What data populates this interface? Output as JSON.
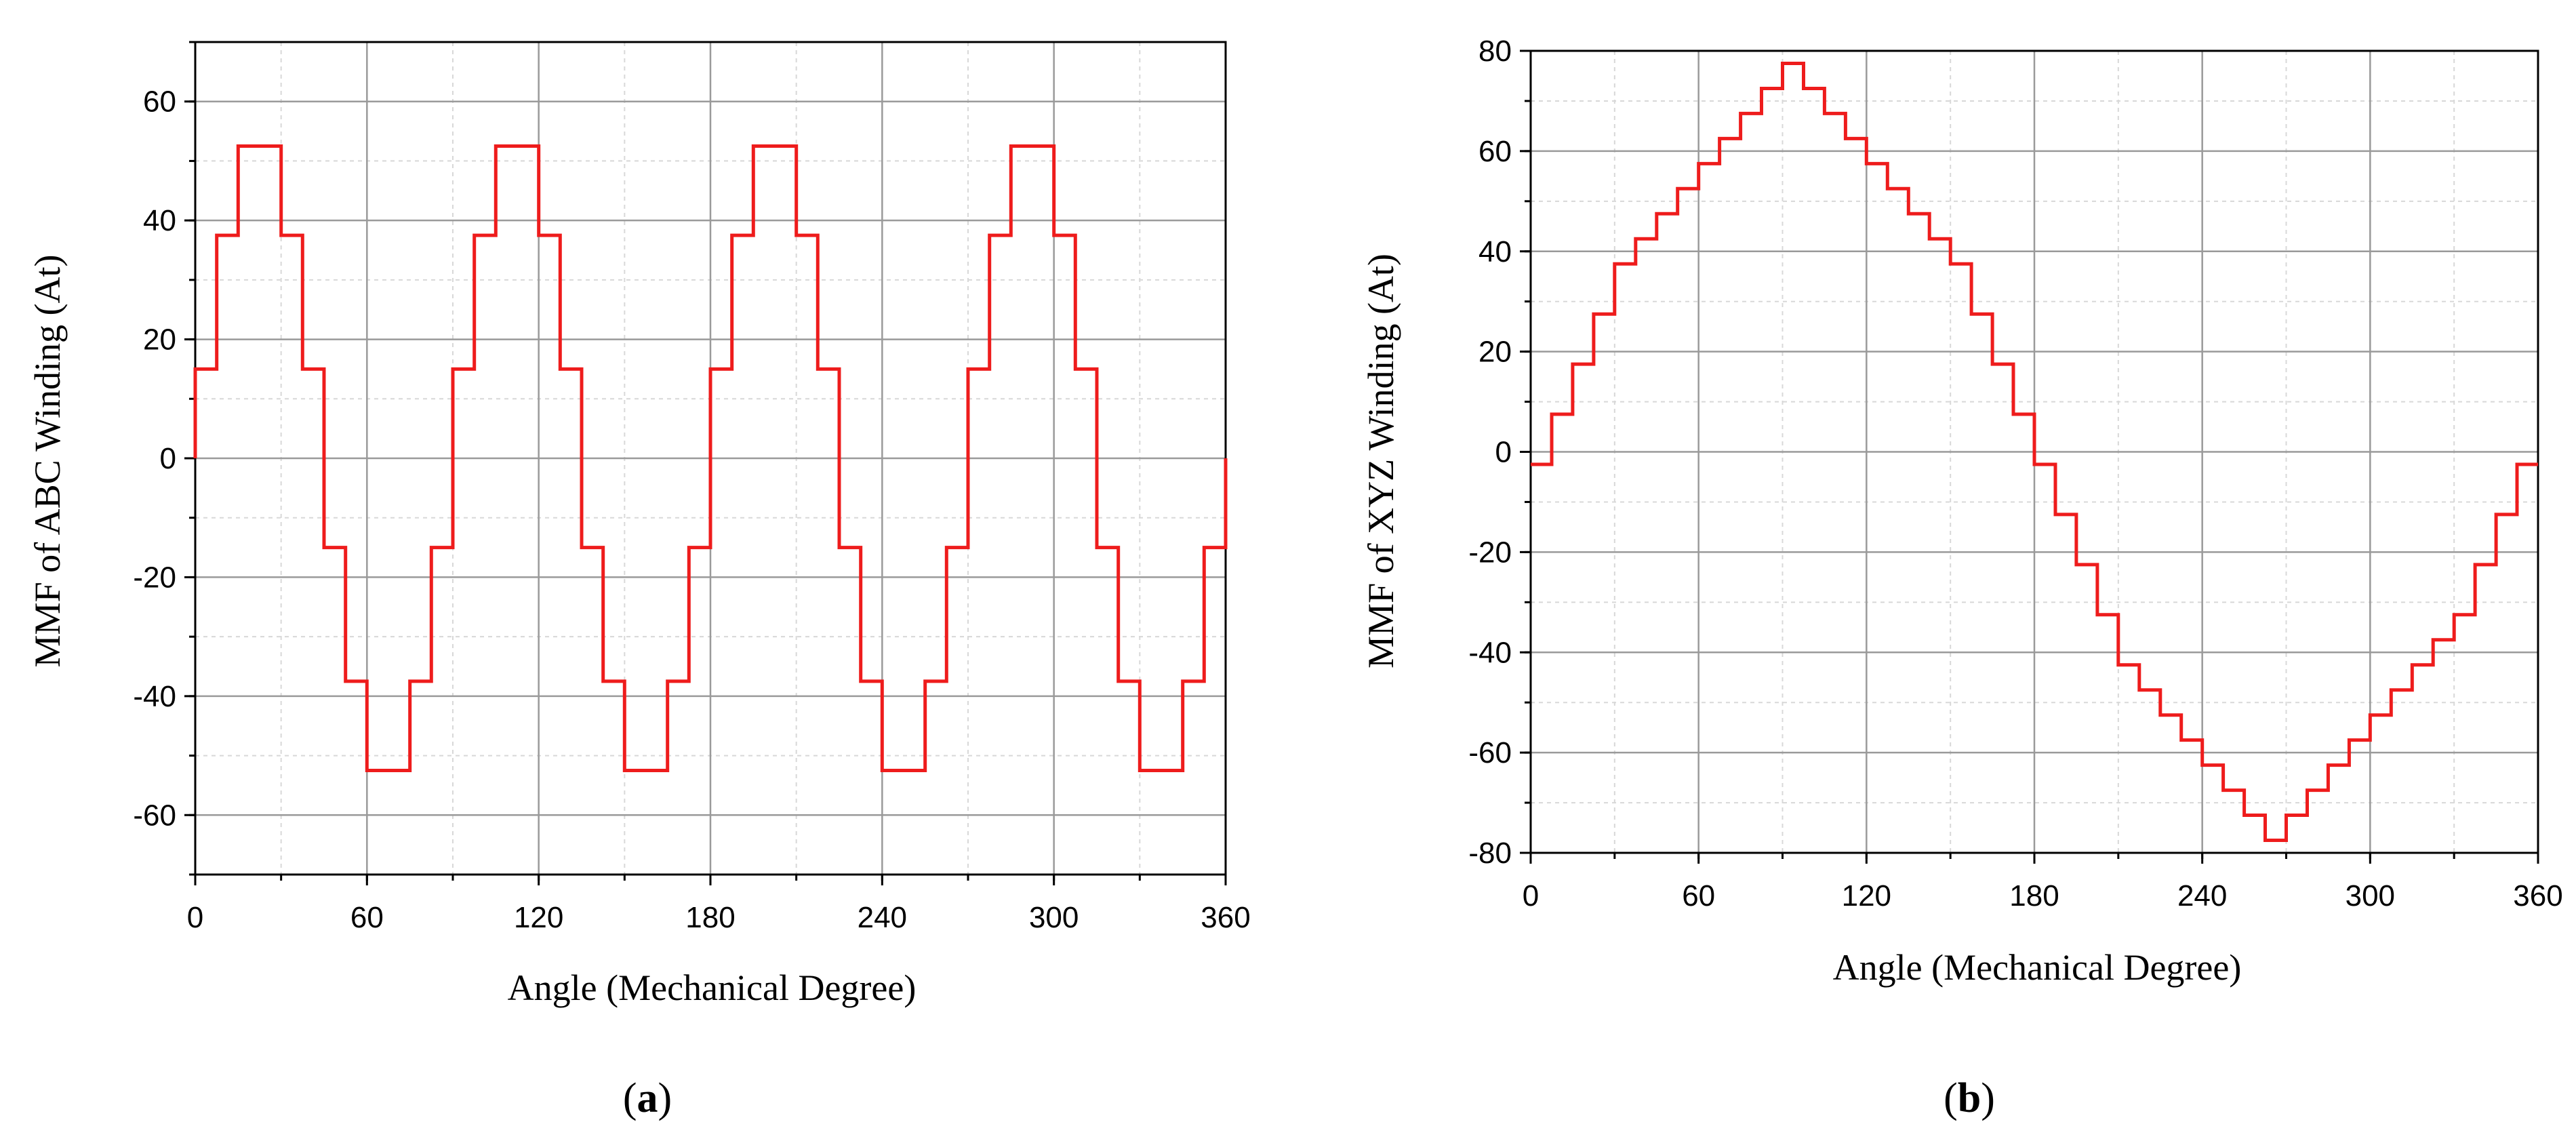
{
  "chart_data": [
    {
      "type": "line",
      "step": true,
      "xlabel": "Angle (Mechanical Degree)",
      "ylabel": "MMF of ABC Winding (At)",
      "xlim": [
        0,
        360
      ],
      "ylim": [
        -70,
        70
      ],
      "x_ticks": [
        "0",
        "60",
        "120",
        "180",
        "240",
        "300",
        "360"
      ],
      "y_ticks": [
        "60",
        "40",
        "20",
        "0",
        "-20",
        "-40",
        "-60"
      ],
      "grid": true,
      "line_color": "#ee1c1c",
      "caption_open": "(",
      "caption_letter": "a",
      "caption_close": ")",
      "series": [
        {
          "x": [
            0,
            0,
            7.5,
            7.5,
            15,
            15,
            30,
            30,
            37.5,
            37.5,
            45,
            45,
            52.5,
            52.5,
            60,
            60,
            75,
            75,
            82.5,
            82.5,
            90,
            90,
            97.5,
            97.5,
            105,
            105,
            120,
            120,
            127.5,
            127.5,
            135,
            135,
            142.5,
            142.5,
            150,
            150,
            165,
            165,
            172.5,
            172.5,
            180,
            180,
            187.5,
            187.5,
            195,
            195,
            210,
            210,
            217.5,
            217.5,
            225,
            225,
            232.5,
            232.5,
            240,
            240,
            255,
            255,
            262.5,
            262.5,
            270,
            270,
            277.5,
            277.5,
            285,
            285,
            300,
            300,
            307.5,
            307.5,
            315,
            315,
            322.5,
            322.5,
            330,
            330,
            345,
            345,
            352.5,
            352.5,
            360,
            360
          ],
          "y": [
            0,
            15,
            15,
            37.5,
            37.5,
            52.5,
            52.5,
            37.5,
            37.5,
            15,
            15,
            -15,
            -15,
            -37.5,
            -37.5,
            -52.5,
            -52.5,
            -37.5,
            -37.5,
            -15,
            -15,
            15,
            15,
            37.5,
            37.5,
            52.5,
            52.5,
            37.5,
            37.5,
            15,
            15,
            -15,
            -15,
            -37.5,
            -37.5,
            -52.5,
            -52.5,
            -37.5,
            -37.5,
            -15,
            -15,
            15,
            15,
            37.5,
            37.5,
            52.5,
            52.5,
            37.5,
            37.5,
            15,
            15,
            -15,
            -15,
            -37.5,
            -37.5,
            -52.5,
            -52.5,
            -37.5,
            -37.5,
            -15,
            -15,
            15,
            15,
            37.5,
            37.5,
            52.5,
            52.5,
            37.5,
            37.5,
            15,
            15,
            -15,
            -15,
            -37.5,
            -37.5,
            -52.5,
            -52.5,
            -37.5,
            -37.5,
            -15,
            -15,
            0
          ]
        }
      ]
    },
    {
      "type": "line",
      "step": true,
      "xlabel": "Angle (Mechanical Degree)",
      "ylabel": "MMF of XYZ Winding (At)",
      "xlim": [
        0,
        360
      ],
      "ylim": [
        -80,
        80
      ],
      "x_ticks": [
        "0",
        "60",
        "120",
        "180",
        "240",
        "300",
        "360"
      ],
      "y_ticks": [
        "80",
        "60",
        "40",
        "20",
        "0",
        "-20",
        "-40",
        "-60",
        "-80"
      ],
      "grid": true,
      "line_color": "#ee1c1c",
      "caption_open": "(",
      "caption_letter": "b",
      "caption_close": ")",
      "series": [
        {
          "x": [
            0,
            7.5,
            15,
            22.5,
            30,
            37.5,
            45,
            52.5,
            60,
            67.5,
            75,
            82.5,
            90,
            97.5,
            105,
            112.5,
            120,
            127.5,
            135,
            142.5,
            150,
            157.5,
            165,
            172.5,
            180,
            187.5,
            195,
            202.5,
            210,
            217.5,
            225,
            232.5,
            240,
            247.5,
            255,
            262.5,
            270,
            277.5,
            285,
            292.5,
            300,
            307.5,
            315,
            322.5,
            330,
            337.5,
            345,
            352.5,
            360
          ],
          "y": [
            -2.5,
            7.5,
            17.5,
            27.5,
            37.5,
            42.5,
            47.5,
            52.5,
            57.5,
            62.5,
            67.5,
            72.5,
            77.5,
            72.5,
            67.5,
            62.5,
            57.5,
            52.5,
            47.5,
            42.5,
            37.5,
            27.5,
            17.5,
            7.5,
            -2.5,
            -12.5,
            -22.5,
            -32.5,
            -42.5,
            -47.5,
            -52.5,
            -57.5,
            -62.5,
            -67.5,
            -72.5,
            -77.5,
            -72.5,
            -67.5,
            -62.5,
            -57.5,
            -52.5,
            -47.5,
            -42.5,
            -37.5,
            -32.5,
            -22.5,
            -12.5,
            -2.5,
            -2.5
          ]
        }
      ]
    }
  ]
}
